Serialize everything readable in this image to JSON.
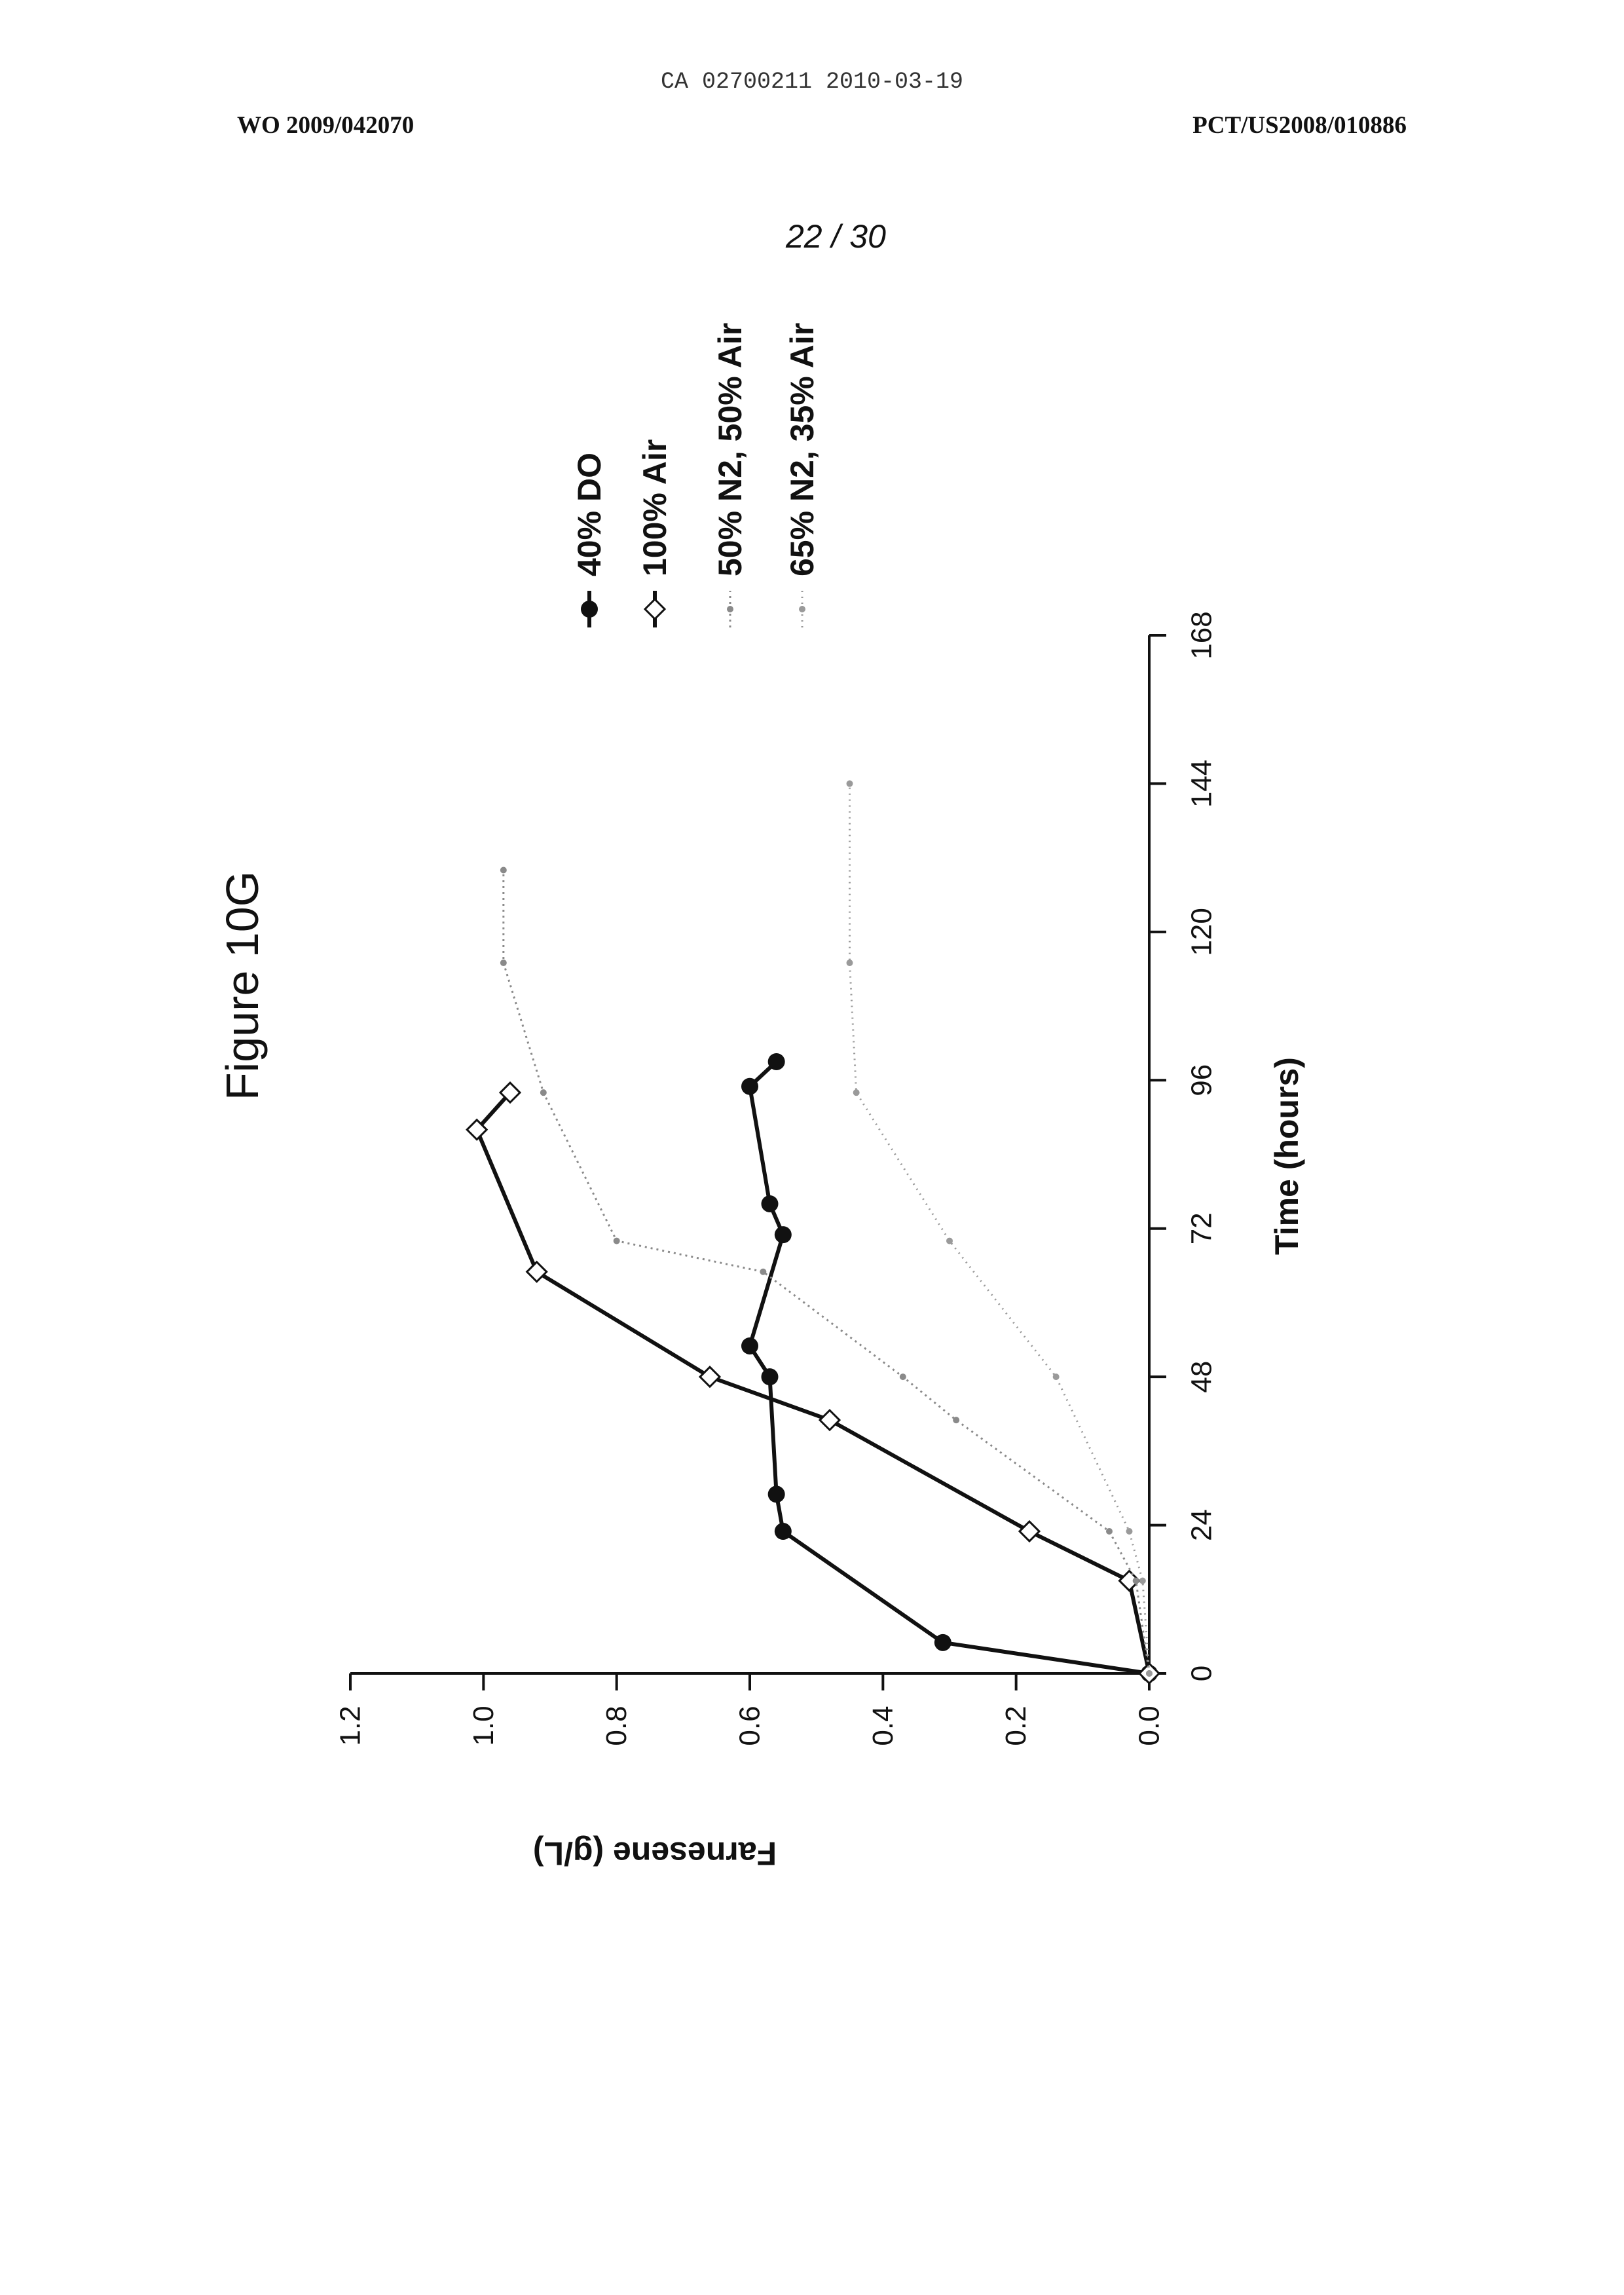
{
  "header": {
    "stamp": "CA 02700211 2010-03-19",
    "left": "WO 2009/042070",
    "right": "PCT/US2008/010886",
    "sheet": "22 / 30"
  },
  "chart_data": {
    "type": "line",
    "title": "Figure 10G",
    "xlabel": "Time (hours)",
    "ylabel": "Farnesene (g/L)",
    "xlim": [
      0,
      168
    ],
    "ylim": [
      0,
      1.2
    ],
    "xticks": [
      "0",
      "24",
      "48",
      "72",
      "96",
      "120",
      "144",
      "168"
    ],
    "yticks": [
      "0.0",
      "0.2",
      "0.4",
      "0.6",
      "0.8",
      "1.0",
      "1.2"
    ],
    "grid": false,
    "legend_position": "right",
    "series": [
      {
        "name": "40% DO",
        "marker": "filled-circle",
        "color": "#111111",
        "x": [
          0,
          5,
          23,
          29,
          48,
          53,
          71,
          76,
          95,
          99
        ],
        "y": [
          0.0,
          0.31,
          0.55,
          0.56,
          0.57,
          0.6,
          0.55,
          0.57,
          0.6,
          0.56
        ]
      },
      {
        "name": "100% Air",
        "marker": "open-diamond",
        "color": "#111111",
        "x": [
          0,
          15,
          23,
          41,
          48,
          65,
          88,
          94
        ],
        "y": [
          0.0,
          0.03,
          0.18,
          0.48,
          0.66,
          0.92,
          1.01,
          0.96
        ]
      },
      {
        "name": "50% N2, 50% Air",
        "marker": "small-dot",
        "color": "#8a8a8a",
        "x": [
          0,
          15,
          23,
          41,
          48,
          65,
          70,
          94,
          115,
          130
        ],
        "y": [
          0.0,
          0.02,
          0.06,
          0.29,
          0.37,
          0.58,
          0.8,
          0.91,
          0.97,
          0.97
        ]
      },
      {
        "name": "65% N2, 35% Air",
        "marker": "small-dot",
        "color": "#9a9a9a",
        "x": [
          0,
          15,
          23,
          48,
          70,
          94,
          115,
          144
        ],
        "y": [
          0.0,
          0.01,
          0.03,
          0.14,
          0.3,
          0.44,
          0.45,
          0.45
        ]
      }
    ]
  }
}
